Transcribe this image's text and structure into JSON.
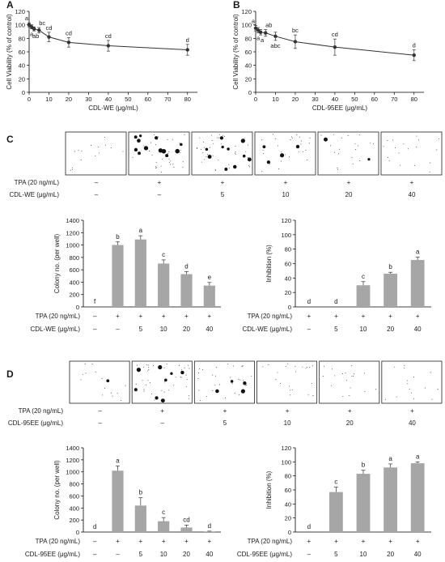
{
  "panels": [
    {
      "letter": "A",
      "chart_data": {
        "type": "line",
        "x": [
          0,
          1.25,
          2.5,
          5,
          10,
          20,
          40,
          80
        ],
        "y": [
          100,
          97,
          94,
          92,
          82,
          74,
          69,
          63
        ],
        "err": [
          3,
          3,
          3,
          4,
          7,
          7,
          8,
          8
        ],
        "point_labels": [
          "a",
          "a",
          "ab",
          "bc",
          "cd",
          "cd",
          "cd",
          "d"
        ],
        "xlabel": "CDL-WE (μg/mL)",
        "ylabel": "Cell Viability (% of control)",
        "xticks": [
          0,
          10,
          20,
          30,
          40,
          50,
          60,
          70,
          80
        ],
        "yticks": [
          0,
          20,
          40,
          60,
          80,
          100,
          120
        ],
        "xlim": [
          0,
          85
        ],
        "ylim": [
          0,
          120
        ],
        "grid": false
      }
    },
    {
      "letter": "B",
      "chart_data": {
        "type": "line",
        "x": [
          0,
          1.25,
          2.5,
          5,
          10,
          20,
          40,
          80
        ],
        "y": [
          95,
          92,
          89,
          88,
          83,
          75,
          67,
          55
        ],
        "err": [
          4,
          4,
          4,
          5,
          6,
          10,
          12,
          8
        ],
        "point_labels": [
          "a",
          "a",
          "a",
          "ab",
          "abc",
          "bc",
          "cd",
          "d"
        ],
        "xlabel": "CDL-95EE (μg/mL)",
        "ylabel": "Cell Viability (% of control)",
        "xticks": [
          0,
          10,
          20,
          30,
          40,
          50,
          60,
          70,
          80
        ],
        "yticks": [
          0,
          20,
          40,
          60,
          80,
          100,
          120
        ],
        "xlim": [
          0,
          85
        ],
        "ylim": [
          0,
          120
        ],
        "grid": false
      }
    },
    {
      "letter": "C",
      "row_labels": [
        "TPA (20 ng/mL)",
        "CDL-WE (μg/mL)"
      ],
      "tpa_marks": [
        "–",
        "+",
        "+",
        "+",
        "+",
        "+"
      ],
      "dose_marks": [
        "–",
        "–",
        "5",
        "10",
        "20",
        "40"
      ],
      "colony_density": [
        0.05,
        0.55,
        0.6,
        0.3,
        0.15,
        0.1
      ],
      "bar_charts": [
        {
          "type": "bar",
          "ylabel": "Colony no. (per well)",
          "yticks": [
            0,
            200,
            400,
            600,
            800,
            1000,
            1200,
            1400
          ],
          "ylim": [
            0,
            1400
          ],
          "values": [
            0,
            1000,
            1090,
            700,
            530,
            345
          ],
          "err": [
            0,
            50,
            60,
            60,
            40,
            50
          ],
          "letters": [
            "f",
            "b",
            "a",
            "c",
            "d",
            "e"
          ],
          "tpa_marks": [
            "–",
            "+",
            "+",
            "+",
            "+",
            "+"
          ],
          "dose_marks": [
            "–",
            "–",
            "5",
            "10",
            "20",
            "40"
          ],
          "row_labels": [
            "TPA (20 ng/mL)",
            "CDL-WE (μg/mL)"
          ]
        },
        {
          "type": "bar",
          "ylabel": "Inhibition (%)",
          "yticks": [
            0,
            20,
            40,
            60,
            80,
            100,
            120
          ],
          "ylim": [
            0,
            120
          ],
          "values": [
            0,
            0,
            30,
            46,
            65
          ],
          "err": [
            0,
            0,
            5,
            2,
            4
          ],
          "letters": [
            "d",
            "d",
            "c",
            "b",
            "a"
          ],
          "tpa_marks": [
            "+",
            "+",
            "+",
            "+",
            "+"
          ],
          "dose_marks": [
            "–",
            "5",
            "10",
            "20",
            "40"
          ],
          "row_labels": [
            "TPA (20 ng/mL)",
            "CDL-WE (μg/mL)"
          ]
        }
      ]
    },
    {
      "letter": "D",
      "row_labels": [
        "TPA (20 ng/mL)",
        "CDL-95EE (μg/mL)"
      ],
      "tpa_marks": [
        "–",
        "+",
        "+",
        "+",
        "+",
        "+"
      ],
      "dose_marks": [
        "–",
        "–",
        "5",
        "10",
        "20",
        "40"
      ],
      "colony_density": [
        0.05,
        0.55,
        0.35,
        0.15,
        0.1,
        0.05
      ],
      "bar_charts": [
        {
          "type": "bar",
          "ylabel": "Colony no. (per well)",
          "yticks": [
            0,
            200,
            400,
            600,
            800,
            1000,
            1200,
            1400
          ],
          "ylim": [
            0,
            1400
          ],
          "values": [
            0,
            1020,
            440,
            180,
            75,
            10
          ],
          "err": [
            0,
            80,
            130,
            60,
            40,
            5
          ],
          "letters": [
            "d",
            "a",
            "b",
            "c",
            "cd",
            "d"
          ],
          "tpa_marks": [
            "–",
            "+",
            "+",
            "+",
            "+",
            "+"
          ],
          "dose_marks": [
            "–",
            "–",
            "5",
            "10",
            "20",
            "40"
          ],
          "row_labels": [
            "TPA (20 ng/mL)",
            "CDL-95EE (μg/mL)"
          ]
        },
        {
          "type": "bar",
          "ylabel": "Inhibition (%)",
          "yticks": [
            0,
            20,
            40,
            60,
            80,
            100,
            120
          ],
          "ylim": [
            0,
            120
          ],
          "values": [
            0,
            57,
            83,
            92,
            98
          ],
          "err": [
            0,
            7,
            5,
            5,
            2
          ],
          "letters": [
            "d",
            "c",
            "b",
            "a",
            "a"
          ],
          "tpa_marks": [
            "+",
            "+",
            "+",
            "+",
            "+"
          ],
          "dose_marks": [
            "–",
            "5",
            "10",
            "20",
            "40"
          ],
          "row_labels": [
            "TPA (20 ng/mL)",
            "CDL-95EE (μg/mL)"
          ]
        }
      ]
    }
  ],
  "colors": {
    "line": "#333333",
    "bar": "#a6a6a6",
    "axis": "#000000",
    "text": "#1a1a1a"
  }
}
